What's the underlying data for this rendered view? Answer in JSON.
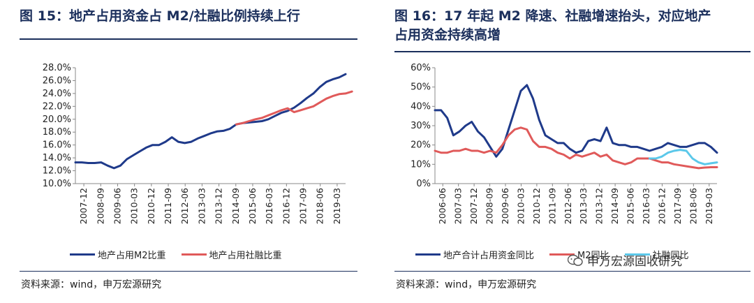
{
  "left": {
    "title": "图 15：地产占用资金占 M2/社融比例持续上行",
    "source": "资料来源：wind，申万宏源研究",
    "chart_data": {
      "type": "line",
      "xlabels": [
        "2007-12",
        "2008-09",
        "2009-06",
        "2010-03",
        "2010-12",
        "2011-09",
        "2012-06",
        "2013-03",
        "2013-12",
        "2014-09",
        "2015-06",
        "2016-03",
        "2016-12",
        "2017-09",
        "2018-06",
        "2019-03"
      ],
      "ylim": [
        0.1,
        0.28
      ],
      "yticks": [
        "10.0%",
        "12.0%",
        "14.0%",
        "16.0%",
        "18.0%",
        "20.0%",
        "22.0%",
        "24.0%",
        "26.0%",
        "28.0%"
      ],
      "series": [
        {
          "name": "地产占用M2比重",
          "color": "#1f3a8a",
          "start": 0,
          "values": [
            0.133,
            0.133,
            0.132,
            0.132,
            0.133,
            0.128,
            0.124,
            0.128,
            0.138,
            0.144,
            0.15,
            0.156,
            0.16,
            0.16,
            0.165,
            0.172,
            0.165,
            0.163,
            0.165,
            0.17,
            0.174,
            0.178,
            0.181,
            0.182,
            0.185,
            0.192,
            0.194,
            0.195,
            0.196,
            0.197,
            0.2,
            0.205,
            0.21,
            0.213,
            0.218,
            0.225,
            0.233,
            0.24,
            0.25,
            0.258,
            0.262,
            0.265,
            0.27
          ]
        },
        {
          "name": "地产占用社融比重",
          "color": "#e05a5a",
          "start": 25,
          "values": [
            0.192,
            0.194,
            0.197,
            0.2,
            0.202,
            0.206,
            0.21,
            0.214,
            0.217,
            0.211,
            0.214,
            0.217,
            0.22,
            0.226,
            0.232,
            0.236,
            0.239,
            0.24,
            0.243
          ]
        }
      ]
    }
  },
  "right": {
    "title_line1": "图 16：17 年起 M2 降速、社融增速抬头，对应地产",
    "title_line2": "占用资金持续高增",
    "source": "资料来源：wind，申万宏源研究",
    "watermark": "申万宏源固收研究",
    "chart_data": {
      "type": "line",
      "xlabels": [
        "2006-06",
        "2007-03",
        "2007-12",
        "2008-09",
        "2009-06",
        "2010-03",
        "2010-12",
        "2011-09",
        "2012-06",
        "2013-03",
        "2013-12",
        "2014-09",
        "2015-06",
        "2016-03",
        "2016-12",
        "2017-09",
        "2018-06",
        "2019-03"
      ],
      "ylim": [
        0,
        0.6
      ],
      "yticks": [
        "0%",
        "10%",
        "20%",
        "30%",
        "40%",
        "50%",
        "60%"
      ],
      "series": [
        {
          "name": "地产合计占用资金同比",
          "color": "#1f3a8a",
          "start": 0,
          "values": [
            0.38,
            0.38,
            0.34,
            0.25,
            0.27,
            0.3,
            0.32,
            0.27,
            0.24,
            0.19,
            0.14,
            0.18,
            0.28,
            0.38,
            0.48,
            0.51,
            0.44,
            0.33,
            0.25,
            0.23,
            0.21,
            0.21,
            0.18,
            0.16,
            0.17,
            0.22,
            0.23,
            0.22,
            0.29,
            0.21,
            0.2,
            0.2,
            0.19,
            0.19,
            0.18,
            0.17,
            0.18,
            0.19,
            0.21,
            0.2,
            0.19,
            0.19,
            0.2,
            0.21,
            0.21,
            0.19,
            0.16
          ]
        },
        {
          "name": "M2同比",
          "color": "#e05a5a",
          "start": 0,
          "values": [
            0.17,
            0.16,
            0.16,
            0.17,
            0.17,
            0.18,
            0.17,
            0.17,
            0.16,
            0.17,
            0.16,
            0.2,
            0.25,
            0.28,
            0.29,
            0.28,
            0.22,
            0.19,
            0.19,
            0.18,
            0.16,
            0.15,
            0.13,
            0.15,
            0.14,
            0.15,
            0.16,
            0.14,
            0.15,
            0.12,
            0.11,
            0.1,
            0.11,
            0.13,
            0.13,
            0.13,
            0.12,
            0.11,
            0.11,
            0.1,
            0.095,
            0.09,
            0.085,
            0.08,
            0.083,
            0.085,
            0.085
          ]
        },
        {
          "name": "社融同比",
          "color": "#5bc8ea",
          "start": 35,
          "values": [
            0.13,
            0.13,
            0.14,
            0.16,
            0.17,
            0.175,
            0.17,
            0.13,
            0.11,
            0.1,
            0.105,
            0.11
          ]
        }
      ]
    }
  }
}
